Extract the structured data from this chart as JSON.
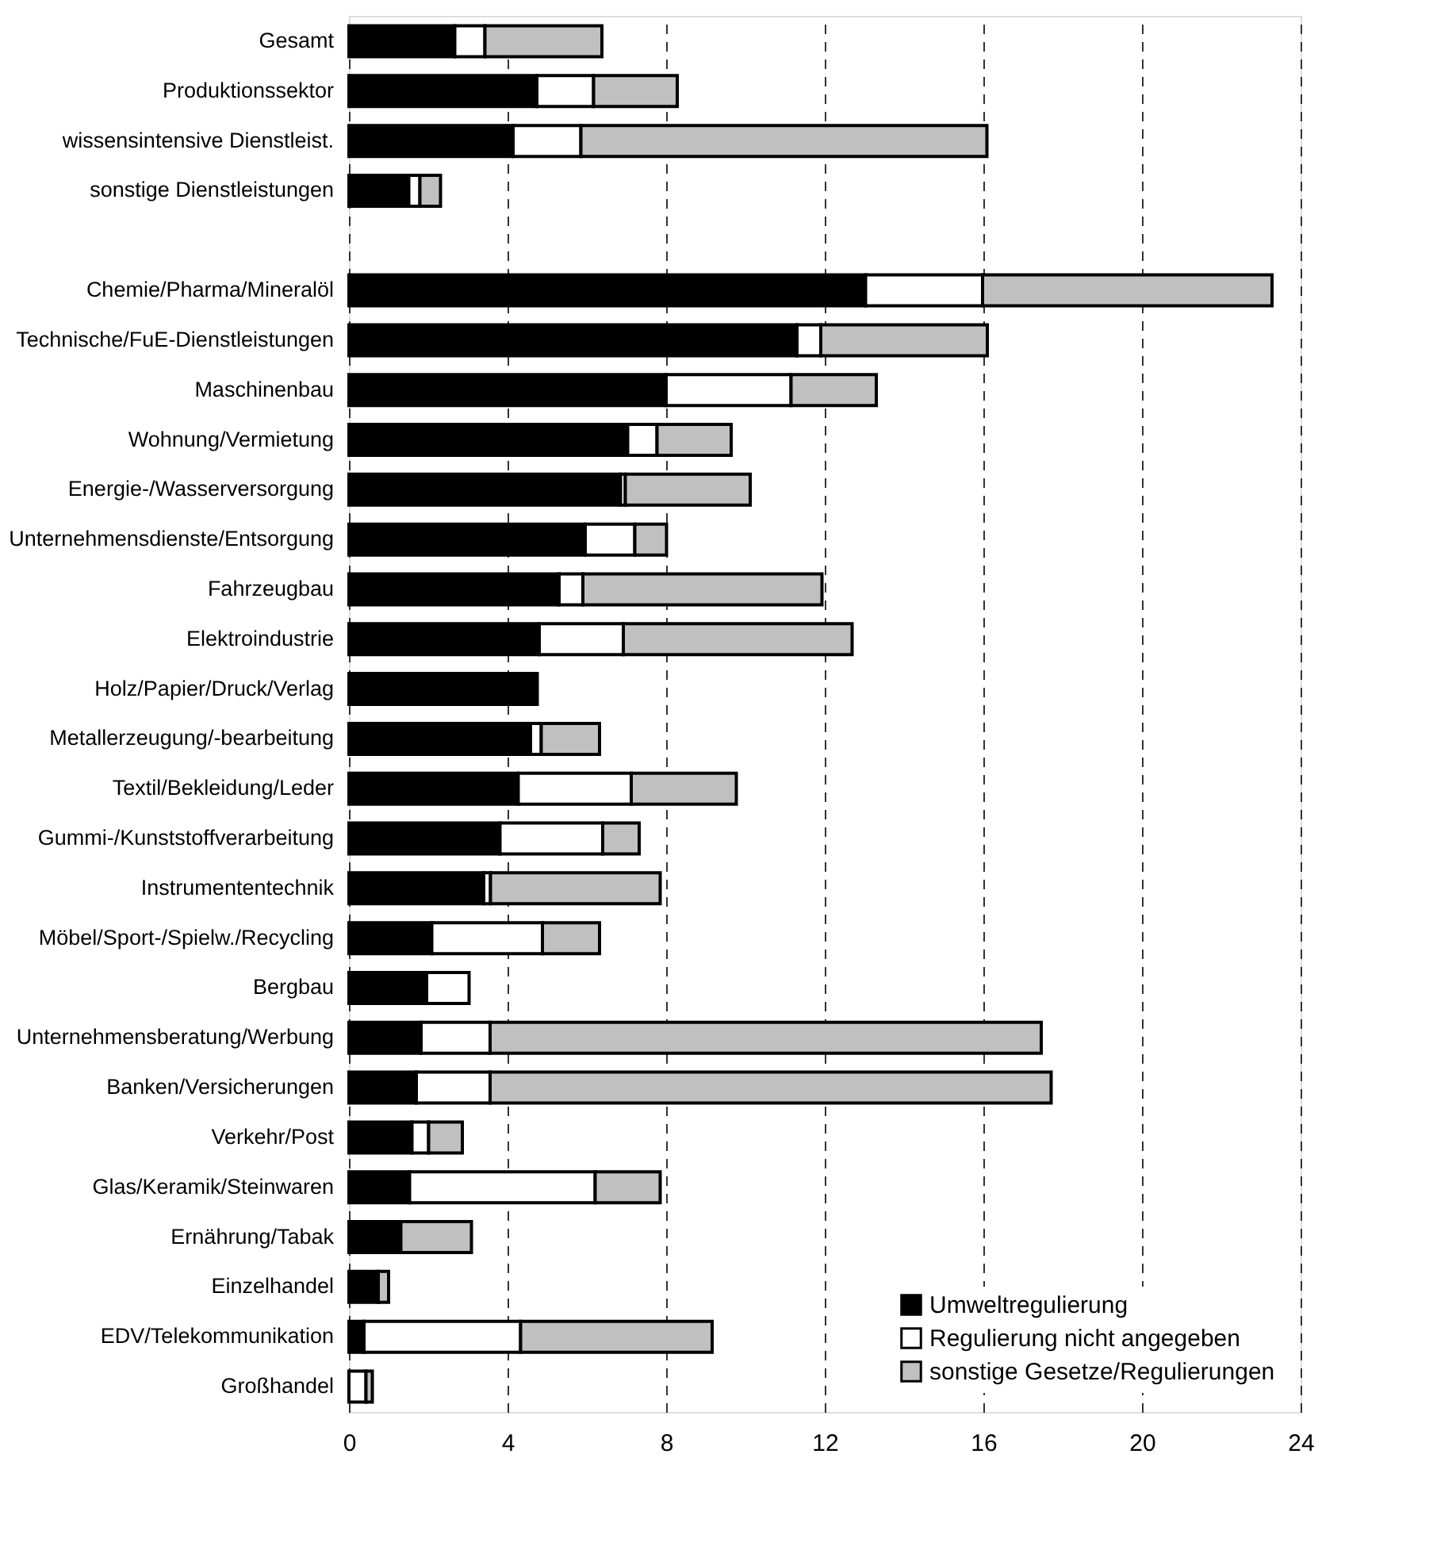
{
  "chart_data": {
    "type": "bar",
    "orientation": "horizontal",
    "stacked": true,
    "categories": [
      "Gesamt",
      "Produktionssektor",
      "wissensintensive Dienstleist.",
      "sonstige Dienstleistungen",
      null,
      "Chemie/Pharma/Mineralöl",
      "Technische/FuE-Dienstleistungen",
      "Maschinenbau",
      "Wohnung/Vermietung",
      "Energie-/Wasserversorgung",
      "Unternehmensdienste/Entsorgung",
      "Fahrzeugbau",
      "Elektroindustrie",
      "Holz/Papier/Druck/Verlag",
      "Metallerzeugung/-bearbeitung",
      "Textil/Bekleidung/Leder",
      "Gummi-/Kunststoffverarbeitung",
      "Instrumententechnik",
      "Möbel/Sport-/Spielw./Recycling",
      "Bergbau",
      "Unternehmensberatung/Werbung",
      "Banken/Versicherungen",
      "Verkehr/Post",
      "Glas/Keramik/Steinwaren",
      "Ernährung/Tabak",
      "Einzelhandel",
      "EDV/Telekommunikation",
      "Großhandel"
    ],
    "series": [
      {
        "name": "Umweltregulierung",
        "color": "#000000",
        "values": [
          2.67,
          4.74,
          4.14,
          1.51,
          null,
          13.03,
          11.3,
          8.0,
          7.03,
          6.85,
          5.96,
          5.3,
          4.8,
          4.75,
          4.58,
          4.27,
          3.81,
          3.4,
          2.09,
          1.96,
          1.82,
          1.7,
          1.59,
          1.53,
          1.31,
          0.74,
          0.38,
          null
        ]
      },
      {
        "name": "Regulierung nicht angegeben",
        "color": "#ffffff",
        "values": [
          0.76,
          1.43,
          1.71,
          0.28,
          null,
          2.95,
          0.6,
          3.15,
          0.74,
          0.12,
          1.25,
          0.6,
          2.12,
          null,
          0.27,
          2.85,
          2.59,
          0.17,
          2.79,
          1.07,
          1.74,
          1.86,
          0.42,
          4.68,
          null,
          null,
          3.95,
          0.43
        ]
      },
      {
        "name": "sonstige Gesetze/Regulierungen",
        "color": "#c0c0c0",
        "values": [
          2.95,
          2.11,
          10.24,
          0.52,
          null,
          7.3,
          4.2,
          2.15,
          1.87,
          3.15,
          0.8,
          6.03,
          5.77,
          null,
          1.47,
          2.65,
          0.92,
          4.28,
          1.44,
          null,
          13.9,
          14.15,
          0.85,
          1.64,
          1.78,
          0.26,
          4.83,
          0.16
        ]
      }
    ],
    "xlim": [
      0,
      24
    ],
    "xticks": [
      0,
      4,
      8,
      12,
      16,
      20,
      24
    ],
    "grid": "x",
    "legend": "bottom right"
  }
}
